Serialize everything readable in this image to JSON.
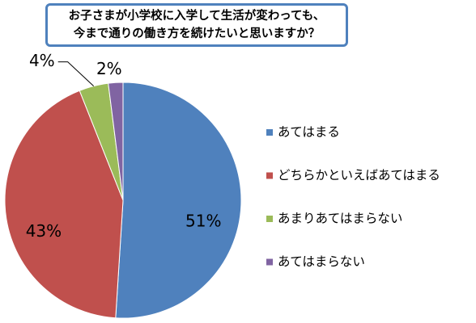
{
  "chart_data": {
    "type": "pie",
    "title": "お子さまが小学校に入学して生活が変わっても、\n今まで通りの働き方を続けたいと思いますか？",
    "categories": [
      "あてはまる",
      "どちらかといえばあてはまる",
      "あまりあてはまらない",
      "あてはまらない"
    ],
    "values": [
      51,
      43,
      4,
      2
    ],
    "value_labels": [
      "51%",
      "43%",
      "4%",
      "2%"
    ],
    "colors": [
      "#4f81bd",
      "#c0504d",
      "#9bbb59",
      "#8064a2"
    ],
    "legend": "right"
  }
}
